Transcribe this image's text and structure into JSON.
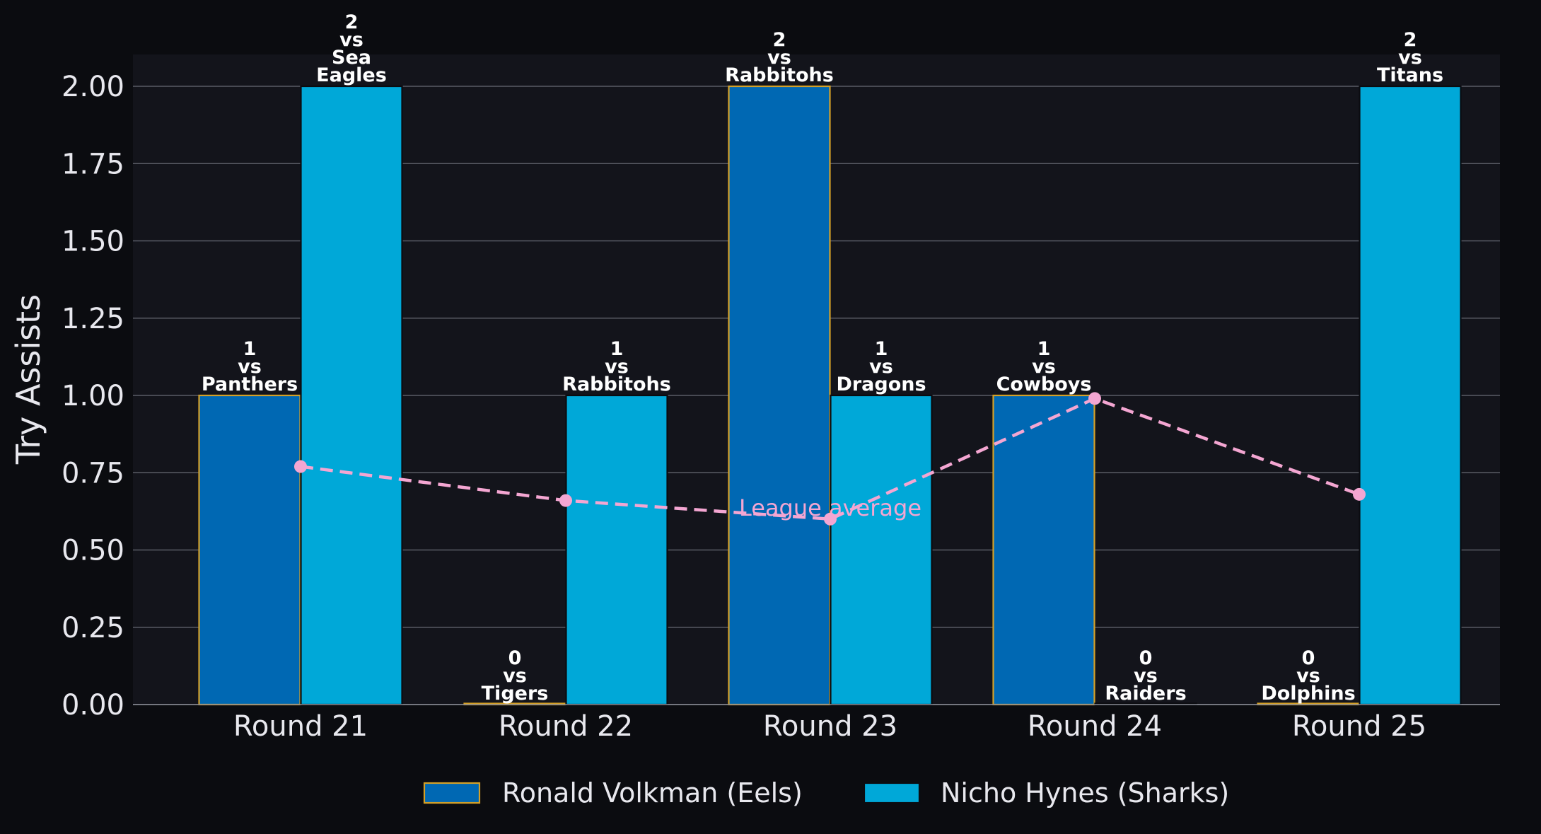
{
  "chart_data": {
    "type": "bar",
    "categories": [
      "Round 21",
      "Round 22",
      "Round 23",
      "Round 24",
      "Round 25"
    ],
    "ylabel": "Try Assists",
    "xlabel": "",
    "ylim": [
      0,
      2.1
    ],
    "yticks": [
      "0.00",
      "0.25",
      "0.50",
      "0.75",
      "1.00",
      "1.25",
      "1.50",
      "1.75",
      "2.00"
    ],
    "grid": "horizontal",
    "legend_position": "bottom-center",
    "series": [
      {
        "name": "Ronald Volkman (Eels)",
        "color": "#0068b3",
        "edge_color": "#d4a028",
        "values": [
          1,
          0,
          2,
          1,
          0
        ],
        "labels": [
          [
            "1",
            "vs",
            "Panthers"
          ],
          [
            "0",
            "vs",
            "Tigers"
          ],
          [
            "2",
            "vs",
            "Rabbitohs"
          ],
          [
            "1",
            "vs",
            "Cowboys"
          ],
          [
            "0",
            "vs",
            "Dolphins"
          ]
        ]
      },
      {
        "name": "Nicho Hynes (Sharks)",
        "color": "#00a8d8",
        "edge_color": "#0b0c10",
        "values": [
          2,
          1,
          1,
          0,
          2
        ],
        "labels": [
          [
            "2",
            "vs",
            "Sea",
            "Eagles"
          ],
          [
            "1",
            "vs",
            "Rabbitohs"
          ],
          [
            "1",
            "vs",
            "Dragons"
          ],
          [
            "0",
            "vs",
            "Raiders"
          ],
          [
            "2",
            "vs",
            "Titans"
          ]
        ]
      }
    ],
    "league_average": {
      "label": "League average",
      "color": "#f4a6d2",
      "values": [
        0.77,
        0.66,
        0.6,
        0.99,
        0.68
      ]
    }
  }
}
